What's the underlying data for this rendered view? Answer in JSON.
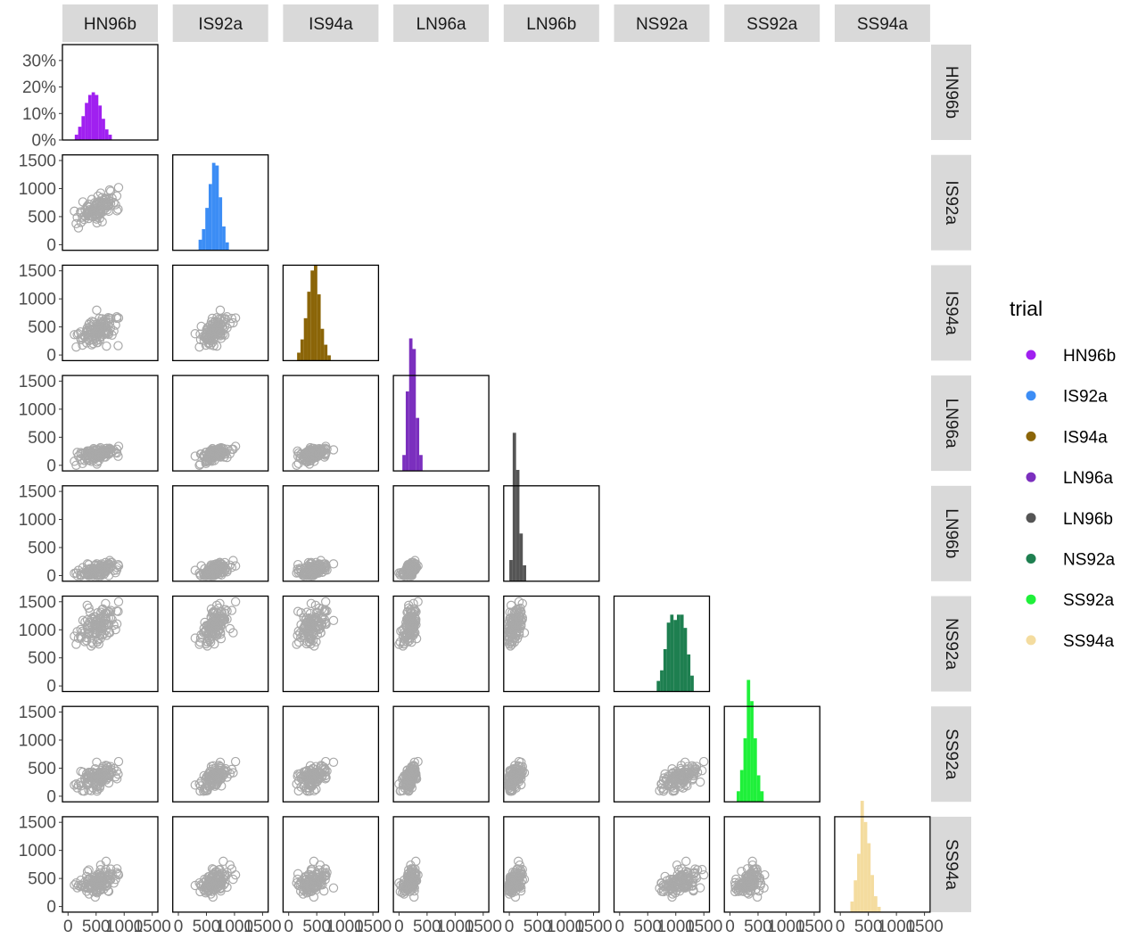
{
  "chart_data": {
    "type": "pairs-matrix",
    "traits": [
      "HN96b",
      "IS92a",
      "IS94a",
      "LN96a",
      "LN96b",
      "NS92a",
      "SS92a",
      "SS94a"
    ],
    "colors": {
      "HN96b": "#A020F0",
      "IS92a": "#3C8DF5",
      "IS94a": "#8B6508",
      "LN96a": "#7B2FBE",
      "LN96b": "#555555",
      "NS92a": "#1E7F50",
      "SS92a": "#1FF03A",
      "SS94a": "#F4DC9F"
    },
    "point_color": "#A9A9A9",
    "xlim": [
      -100,
      1600
    ],
    "ylim": [
      -100,
      1600
    ],
    "x_ticks": [
      "0",
      "500",
      "1000",
      "1500"
    ],
    "y_ticks": [
      "0",
      "500",
      "1000",
      "1500"
    ],
    "diag_y_ticks": [
      "0%",
      "10%",
      "20%",
      "30%"
    ],
    "diag_ylim": [
      0,
      0.36
    ],
    "bin_width": 60,
    "scatter": {
      "trait_stats": {
        "HN96b": {
          "mean": 510,
          "sd": 170
        },
        "IS92a": {
          "mean": 640,
          "sd": 140
        },
        "IS94a": {
          "mean": 420,
          "sd": 150
        },
        "LN96a": {
          "mean": 190,
          "sd": 70
        },
        "LN96b": {
          "mean": 80,
          "sd": 70
        },
        "NS92a": {
          "mean": 1060,
          "sd": 200
        },
        "SS92a": {
          "mean": 330,
          "sd": 120
        },
        "SS94a": {
          "mean": 430,
          "sd": 130
        }
      },
      "n_points": 110
    },
    "histograms": {
      "HN96b": [
        [
          150,
          0.02
        ],
        [
          210,
          0.05
        ],
        [
          270,
          0.09
        ],
        [
          330,
          0.14
        ],
        [
          390,
          0.17
        ],
        [
          450,
          0.18
        ],
        [
          510,
          0.17
        ],
        [
          570,
          0.13
        ],
        [
          630,
          0.08
        ],
        [
          690,
          0.04
        ],
        [
          750,
          0.02
        ]
      ],
      "IS92a": [
        [
          390,
          0.04
        ],
        [
          450,
          0.08
        ],
        [
          510,
          0.16
        ],
        [
          570,
          0.25
        ],
        [
          630,
          0.33
        ],
        [
          690,
          0.32
        ],
        [
          750,
          0.2
        ],
        [
          810,
          0.09
        ],
        [
          870,
          0.03
        ]
      ],
      "IS94a": [
        [
          180,
          0.03
        ],
        [
          240,
          0.08
        ],
        [
          300,
          0.16
        ],
        [
          360,
          0.26
        ],
        [
          420,
          0.34
        ],
        [
          480,
          0.36
        ],
        [
          540,
          0.25
        ],
        [
          600,
          0.12
        ],
        [
          660,
          0.06
        ],
        [
          720,
          0.02
        ]
      ],
      "LN96a": [
        [
          90,
          0.06
        ],
        [
          150,
          0.3
        ],
        [
          210,
          0.5
        ],
        [
          270,
          0.46
        ],
        [
          330,
          0.2
        ],
        [
          390,
          0.06
        ]
      ],
      "LN96b": [
        [
          30,
          0.08
        ],
        [
          90,
          0.56
        ],
        [
          150,
          0.42
        ],
        [
          210,
          0.18
        ],
        [
          270,
          0.06
        ]
      ],
      "NS92a": [
        [
          690,
          0.04
        ],
        [
          750,
          0.08
        ],
        [
          810,
          0.16
        ],
        [
          870,
          0.26
        ],
        [
          930,
          0.29
        ],
        [
          990,
          0.27
        ],
        [
          1050,
          0.29
        ],
        [
          1110,
          0.29
        ],
        [
          1170,
          0.24
        ],
        [
          1230,
          0.14
        ],
        [
          1290,
          0.06
        ]
      ],
      "SS92a": [
        [
          150,
          0.04
        ],
        [
          210,
          0.12
        ],
        [
          270,
          0.24
        ],
        [
          330,
          0.46
        ],
        [
          390,
          0.38
        ],
        [
          450,
          0.24
        ],
        [
          510,
          0.1
        ],
        [
          570,
          0.04
        ]
      ],
      "SS94a": [
        [
          210,
          0.04
        ],
        [
          270,
          0.12
        ],
        [
          330,
          0.22
        ],
        [
          390,
          0.42
        ],
        [
          450,
          0.34
        ],
        [
          510,
          0.26
        ],
        [
          570,
          0.14
        ],
        [
          630,
          0.06
        ],
        [
          690,
          0.02
        ]
      ]
    },
    "legend": {
      "title": "trial",
      "items": [
        "HN96b",
        "IS92a",
        "IS94a",
        "LN96a",
        "LN96b",
        "NS92a",
        "SS92a",
        "SS94a"
      ],
      "position": "right"
    }
  }
}
